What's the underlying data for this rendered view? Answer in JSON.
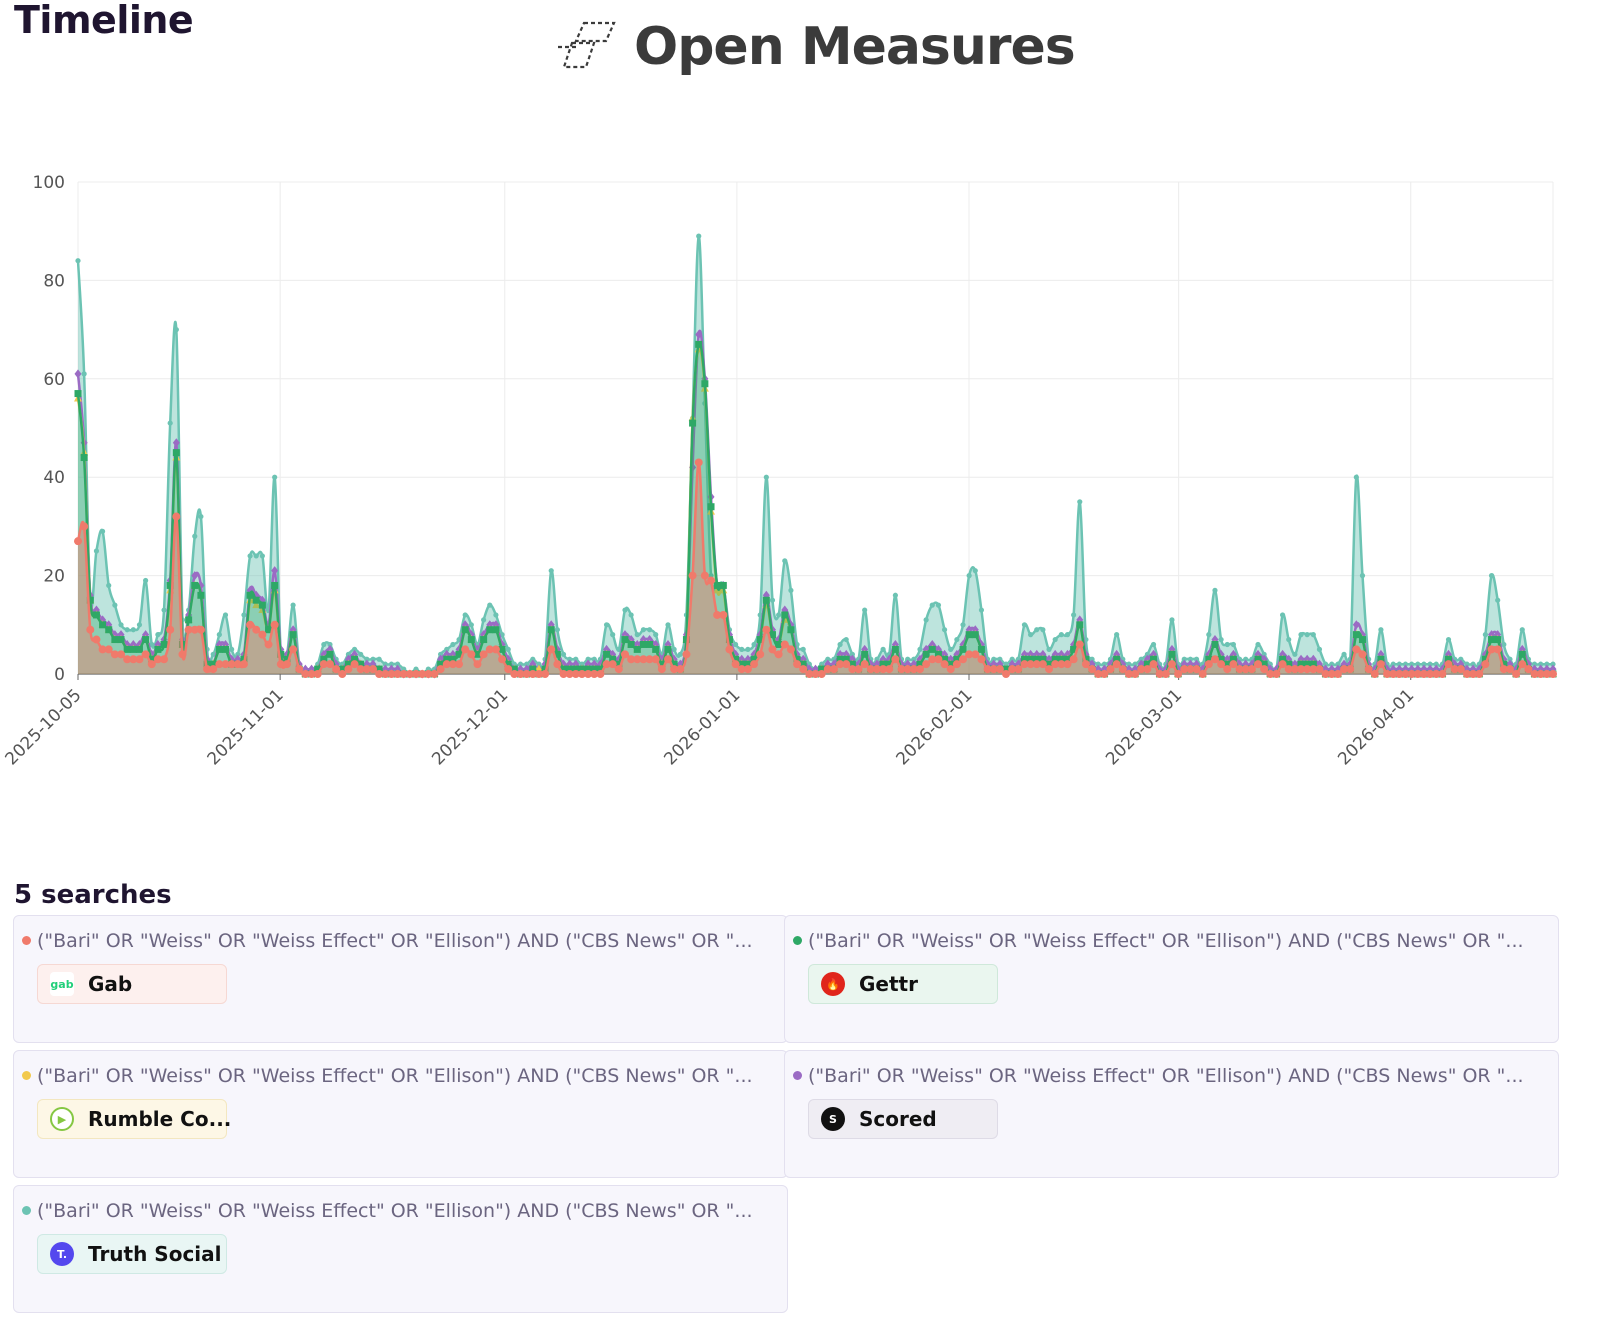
{
  "page_title": "Timeline",
  "brand": {
    "name": "Open Measures",
    "logo_icon": "open-measures-logo-icon"
  },
  "searches_heading": "5 searches",
  "searches": [
    {
      "query": "(\"Bari\" OR \"Weiss\" OR \"Weiss Effect\" OR \"Ellison\") AND (\"CBS News\" OR \"...",
      "platform": "Gab",
      "color": "#f07a6b",
      "chip_bg": "#fdf0ee",
      "chip_border": "#f6d8d3",
      "icon": "gab-icon"
    },
    {
      "query": "(\"Bari\" OR \"Weiss\" OR \"Weiss Effect\" OR \"Ellison\") AND (\"CBS News\" OR \"...",
      "platform": "Gettr",
      "color": "#2ea866",
      "chip_bg": "#eaf6ef",
      "chip_border": "#cfe8da",
      "icon": "gettr-icon"
    },
    {
      "query": "(\"Bari\" OR \"Weiss\" OR \"Weiss Effect\" OR \"Ellison\") AND (\"CBS News\" OR \"...",
      "platform": "Rumble Co...",
      "color": "#f2c94c",
      "chip_bg": "#fdf7e6",
      "chip_border": "#f3e7c0",
      "icon": "rumble-icon"
    },
    {
      "query": "(\"Bari\" OR \"Weiss\" OR \"Weiss Effect\" OR \"Ellison\") AND (\"CBS News\" OR \"...",
      "platform": "Scored",
      "color": "#9b6bc4",
      "chip_bg": "#efedf3",
      "chip_border": "#dedbe6",
      "icon": "scored-icon"
    },
    {
      "query": "(\"Bari\" OR \"Weiss\" OR \"Weiss Effect\" OR \"Ellison\") AND (\"CBS News\" OR \"...",
      "platform": "Truth Social",
      "color": "#6cc3b3",
      "chip_bg": "#e9f6f4",
      "chip_border": "#cfe9e4",
      "icon": "truth-social-icon"
    }
  ],
  "chart_data": {
    "type": "area",
    "x_type": "date",
    "x_start": "2025-10-05",
    "x_end": "2026-04-20",
    "ylim": [
      0,
      100
    ],
    "yticks": [
      0,
      20,
      40,
      60,
      80,
      100
    ],
    "xticks": [
      "2025-10-05",
      "2025-11-01",
      "2025-12-01",
      "2026-01-01",
      "2026-02-01",
      "2026-03-01",
      "2026-04-01"
    ],
    "grid": true,
    "legend": "none",
    "series": [
      {
        "name": "Truth Social",
        "color": "#6cc3b3",
        "marker": "circle",
        "values": [
          84,
          61,
          15,
          25,
          29,
          18,
          14,
          10,
          9,
          9,
          10,
          19,
          6,
          8,
          13,
          51,
          70,
          11,
          13,
          28,
          32,
          5,
          4,
          8,
          12,
          5,
          4,
          12,
          24,
          24,
          24,
          13,
          40,
          4,
          4,
          14,
          2,
          1,
          1,
          2,
          6,
          6,
          3,
          2,
          4,
          5,
          4,
          3,
          3,
          3,
          2,
          2,
          2,
          1,
          0,
          1,
          0,
          1,
          1,
          4,
          5,
          6,
          7,
          12,
          10,
          6,
          11,
          14,
          12,
          8,
          5,
          2,
          2,
          2,
          3,
          2,
          3,
          21,
          9,
          4,
          3,
          3,
          2,
          3,
          3,
          3,
          10,
          8,
          5,
          13,
          12,
          8,
          9,
          9,
          8,
          4,
          10,
          5,
          4,
          12,
          52,
          89,
          55,
          20,
          18,
          18,
          9,
          6,
          5,
          5,
          6,
          12,
          40,
          15,
          12,
          23,
          17,
          6,
          5,
          2,
          1,
          2,
          3,
          3,
          6,
          7,
          4,
          3,
          13,
          3,
          3,
          5,
          4,
          16,
          3,
          3,
          3,
          5,
          11,
          14,
          14,
          9,
          5,
          7,
          10,
          20,
          21,
          13,
          3,
          3,
          3,
          2,
          3,
          3,
          10,
          8,
          9,
          9,
          5,
          7,
          8,
          8,
          12,
          35,
          7,
          3,
          2,
          2,
          3,
          8,
          3,
          2,
          2,
          3,
          4,
          6,
          2,
          2,
          11,
          2,
          3,
          3,
          3,
          2,
          8,
          17,
          7,
          6,
          6,
          3,
          3,
          3,
          6,
          4,
          2,
          1,
          12,
          7,
          4,
          8,
          8,
          8,
          5,
          2,
          2,
          2,
          4,
          3,
          40,
          20,
          3,
          2,
          9,
          2,
          2,
          2,
          2,
          2,
          2,
          2,
          2,
          2,
          2,
          7,
          3,
          3,
          2,
          2,
          2,
          8,
          20,
          15,
          6,
          3,
          2,
          9,
          3,
          2,
          2,
          2,
          2
        ]
      },
      {
        "name": "Scored",
        "color": "#9b6bc4",
        "marker": "diamond",
        "values": [
          61,
          47,
          16,
          13,
          11,
          10,
          8,
          8,
          6,
          6,
          6,
          8,
          4,
          6,
          7,
          19,
          47,
          7,
          12,
          20,
          18,
          3,
          2,
          6,
          6,
          3,
          3,
          4,
          17,
          16,
          15,
          10,
          21,
          5,
          4,
          9,
          2,
          1,
          1,
          1,
          4,
          5,
          2,
          1,
          3,
          4,
          2,
          2,
          2,
          1,
          1,
          1,
          1,
          0,
          0,
          0,
          0,
          0,
          0,
          3,
          4,
          4,
          5,
          10,
          8,
          5,
          8,
          10,
          10,
          6,
          3,
          1,
          1,
          1,
          2,
          1,
          2,
          10,
          5,
          2,
          2,
          2,
          1,
          2,
          2,
          2,
          5,
          4,
          3,
          8,
          7,
          6,
          7,
          7,
          6,
          3,
          6,
          3,
          2,
          8,
          42,
          69,
          60,
          36,
          18,
          18,
          8,
          4,
          3,
          3,
          4,
          8,
          16,
          9,
          7,
          13,
          10,
          4,
          3,
          1,
          1,
          1,
          2,
          2,
          4,
          4,
          3,
          2,
          5,
          2,
          2,
          3,
          3,
          6,
          2,
          2,
          2,
          3,
          5,
          6,
          5,
          4,
          3,
          4,
          6,
          9,
          9,
          6,
          2,
          2,
          2,
          1,
          2,
          2,
          4,
          4,
          4,
          4,
          3,
          4,
          4,
          4,
          6,
          11,
          4,
          2,
          1,
          1,
          2,
          4,
          2,
          1,
          1,
          2,
          3,
          4,
          1,
          1,
          5,
          1,
          2,
          2,
          2,
          1,
          4,
          7,
          4,
          3,
          4,
          2,
          2,
          2,
          4,
          3,
          1,
          1,
          4,
          3,
          2,
          3,
          3,
          3,
          2,
          1,
          1,
          1,
          2,
          2,
          10,
          8,
          2,
          1,
          4,
          1,
          1,
          1,
          1,
          1,
          1,
          1,
          1,
          1,
          1,
          4,
          2,
          2,
          1,
          1,
          1,
          4,
          8,
          8,
          3,
          2,
          1,
          5,
          2,
          1,
          1,
          1,
          1
        ]
      },
      {
        "name": "Rumble Co...",
        "color": "#f2c94c",
        "marker": "triangle",
        "values": [
          56,
          45,
          15,
          12,
          10,
          9,
          7,
          7,
          5,
          5,
          5,
          7,
          3,
          5,
          6,
          17,
          44,
          6,
          11,
          18,
          16,
          2,
          2,
          5,
          5,
          2,
          2,
          3,
          15,
          14,
          13,
          9,
          17,
          4,
          3,
          8,
          1,
          0,
          0,
          1,
          3,
          4,
          1,
          1,
          2,
          3,
          2,
          1,
          1,
          1,
          0,
          0,
          0,
          0,
          0,
          0,
          0,
          0,
          0,
          2,
          3,
          3,
          4,
          9,
          7,
          4,
          7,
          9,
          9,
          5,
          2,
          1,
          0,
          0,
          1,
          1,
          1,
          9,
          4,
          1,
          1,
          1,
          1,
          1,
          1,
          1,
          4,
          3,
          2,
          7,
          6,
          5,
          6,
          6,
          5,
          2,
          5,
          2,
          1,
          7,
          52,
          66,
          58,
          33,
          17,
          17,
          7,
          3,
          2,
          2,
          3,
          7,
          14,
          8,
          6,
          11,
          9,
          3,
          2,
          0,
          0,
          1,
          1,
          1,
          3,
          3,
          2,
          1,
          4,
          1,
          1,
          2,
          2,
          5,
          1,
          1,
          1,
          2,
          4,
          5,
          4,
          3,
          2,
          3,
          5,
          8,
          8,
          5,
          1,
          1,
          1,
          1,
          1,
          1,
          3,
          3,
          3,
          3,
          2,
          3,
          3,
          3,
          5,
          10,
          3,
          1,
          0,
          0,
          1,
          3,
          1,
          0,
          0,
          1,
          2,
          3,
          0,
          0,
          4,
          0,
          1,
          1,
          1,
          0,
          3,
          6,
          3,
          2,
          3,
          1,
          1,
          1,
          3,
          2,
          0,
          0,
          3,
          2,
          1,
          2,
          2,
          2,
          1,
          0,
          0,
          0,
          1,
          1,
          8,
          7,
          1,
          0,
          3,
          0,
          0,
          0,
          0,
          0,
          0,
          0,
          0,
          0,
          0,
          3,
          1,
          1,
          0,
          0,
          0,
          3,
          7,
          7,
          2,
          1,
          0,
          4,
          1,
          0,
          0,
          0,
          0
        ]
      },
      {
        "name": "Gettr",
        "color": "#2ea866",
        "marker": "square",
        "values": [
          57,
          44,
          15,
          12,
          10,
          9,
          7,
          7,
          5,
          5,
          5,
          7,
          3,
          5,
          6,
          18,
          45,
          6,
          11,
          18,
          16,
          2,
          2,
          5,
          5,
          2,
          2,
          3,
          16,
          15,
          14,
          9,
          18,
          4,
          3,
          8,
          1,
          0,
          0,
          1,
          3,
          4,
          1,
          1,
          2,
          3,
          2,
          1,
          1,
          1,
          0,
          0,
          0,
          0,
          0,
          0,
          0,
          0,
          0,
          2,
          3,
          3,
          4,
          9,
          7,
          4,
          7,
          9,
          9,
          5,
          2,
          1,
          0,
          0,
          1,
          0,
          1,
          9,
          4,
          1,
          1,
          1,
          1,
          1,
          1,
          1,
          4,
          3,
          2,
          7,
          6,
          5,
          6,
          6,
          5,
          2,
          5,
          2,
          1,
          7,
          51,
          67,
          59,
          34,
          18,
          18,
          7,
          3,
          2,
          2,
          3,
          7,
          15,
          8,
          6,
          12,
          9,
          3,
          2,
          0,
          0,
          1,
          1,
          1,
          3,
          3,
          2,
          1,
          4,
          1,
          1,
          2,
          2,
          5,
          1,
          1,
          1,
          2,
          4,
          5,
          4,
          3,
          2,
          3,
          5,
          8,
          8,
          5,
          1,
          1,
          1,
          1,
          1,
          1,
          3,
          3,
          3,
          3,
          2,
          3,
          3,
          3,
          5,
          10,
          3,
          1,
          0,
          0,
          1,
          3,
          1,
          0,
          0,
          1,
          2,
          3,
          0,
          0,
          4,
          0,
          1,
          1,
          1,
          0,
          3,
          6,
          3,
          2,
          3,
          1,
          1,
          1,
          3,
          2,
          0,
          0,
          3,
          2,
          1,
          2,
          2,
          2,
          1,
          0,
          0,
          0,
          1,
          1,
          8,
          7,
          1,
          0,
          3,
          0,
          0,
          0,
          0,
          0,
          0,
          0,
          0,
          0,
          0,
          3,
          1,
          1,
          0,
          0,
          0,
          3,
          7,
          7,
          2,
          1,
          0,
          4,
          1,
          0,
          0,
          0,
          0
        ]
      },
      {
        "name": "Gab",
        "color": "#f07a6b",
        "marker": "circle",
        "values": [
          27,
          30,
          9,
          7,
          5,
          5,
          4,
          4,
          3,
          3,
          3,
          4,
          2,
          3,
          3,
          9,
          32,
          4,
          9,
          9,
          9,
          1,
          1,
          2,
          2,
          2,
          2,
          2,
          10,
          9,
          8,
          6,
          10,
          2,
          2,
          5,
          1,
          0,
          0,
          0,
          2,
          2,
          1,
          0,
          1,
          2,
          1,
          1,
          1,
          0,
          0,
          0,
          0,
          0,
          0,
          0,
          0,
          0,
          0,
          1,
          2,
          2,
          2,
          5,
          4,
          2,
          4,
          5,
          5,
          3,
          1,
          0,
          0,
          0,
          0,
          0,
          0,
          5,
          2,
          0,
          0,
          0,
          0,
          0,
          0,
          0,
          2,
          2,
          1,
          4,
          3,
          3,
          3,
          3,
          3,
          1,
          3,
          1,
          1,
          4,
          20,
          43,
          20,
          19,
          12,
          12,
          5,
          2,
          1,
          1,
          2,
          4,
          9,
          5,
          4,
          6,
          5,
          2,
          1,
          0,
          0,
          0,
          1,
          1,
          2,
          2,
          1,
          1,
          2,
          1,
          1,
          1,
          1,
          3,
          1,
          1,
          1,
          1,
          2,
          3,
          3,
          2,
          1,
          2,
          3,
          4,
          4,
          3,
          1,
          1,
          1,
          0,
          1,
          1,
          2,
          2,
          2,
          2,
          1,
          2,
          2,
          2,
          3,
          6,
          2,
          1,
          0,
          0,
          1,
          2,
          1,
          0,
          0,
          1,
          1,
          2,
          0,
          0,
          2,
          0,
          1,
          1,
          1,
          0,
          2,
          3,
          2,
          1,
          2,
          1,
          1,
          1,
          2,
          1,
          0,
          0,
          2,
          1,
          1,
          1,
          1,
          1,
          1,
          0,
          0,
          0,
          1,
          1,
          5,
          4,
          1,
          0,
          2,
          0,
          0,
          0,
          0,
          0,
          0,
          0,
          0,
          0,
          0,
          2,
          1,
          1,
          0,
          0,
          0,
          2,
          5,
          5,
          1,
          1,
          0,
          2,
          1,
          0,
          0,
          0,
          0
        ]
      }
    ]
  }
}
